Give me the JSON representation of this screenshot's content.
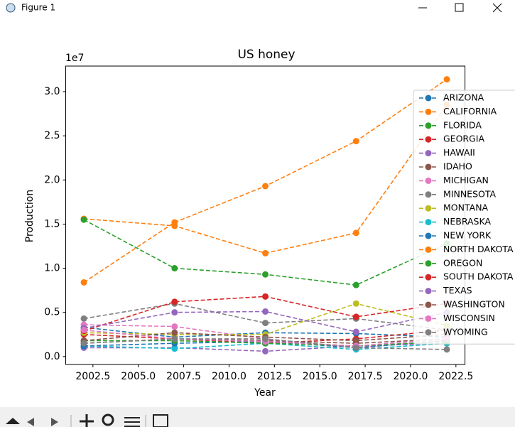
{
  "window_title": "Figure 1",
  "chart_data": {
    "type": "line",
    "title": "US honey",
    "x_label": "Year",
    "y_label": "Production",
    "y_offset_label": "1e7",
    "x": [
      2002,
      2007,
      2012,
      2017,
      2022
    ],
    "xlim": [
      2001,
      2023
    ],
    "xticks": [
      2002.5,
      {
        "value": 2005,
        "label": "2005.0"
      },
      2007.5,
      {
        "value": 2010,
        "label": "2010.0"
      },
      2012.5,
      {
        "value": 2015,
        "label": "2015.0"
      },
      2017.5,
      {
        "value": 2020,
        "label": "2020.0"
      },
      2022.5
    ],
    "ylim": [
      -0.09,
      3.29
    ],
    "yticks": [
      {
        "value": 0,
        "label": "0.0"
      },
      0.5,
      {
        "value": 1,
        "label": "1.0"
      },
      1.5,
      {
        "value": 2,
        "label": "2.0"
      },
      2.5,
      {
        "value": 3,
        "label": "3.0"
      }
    ],
    "line_style": "dashed",
    "marker": "circle",
    "legend": "right",
    "series": [
      {
        "name": "ARIZONA",
        "color": "#1f77b4",
        "values": [
          0.33,
          0.22,
          0.27,
          0.26,
          0.22
        ]
      },
      {
        "name": "CALIFORNIA",
        "color": "#ff7f0e",
        "values": [
          1.56,
          1.48,
          1.17,
          1.4,
          2.85
        ]
      },
      {
        "name": "FLORIDA",
        "color": "#2ca02c",
        "values": [
          1.55,
          1.0,
          0.93,
          0.81,
          1.28
        ]
      },
      {
        "name": "GEORGIA",
        "color": "#d62728",
        "values": [
          0.25,
          0.2,
          0.15,
          0.2,
          0.3
        ]
      },
      {
        "name": "HAWAII",
        "color": "#9467bd",
        "values": [
          0.1,
          0.1,
          0.06,
          0.12,
          0.15
        ]
      },
      {
        "name": "IDAHO",
        "color": "#8c564b",
        "values": [
          0.15,
          0.2,
          0.18,
          0.15,
          0.2
        ]
      },
      {
        "name": "MICHIGAN",
        "color": "#e377c2",
        "values": [
          0.36,
          0.34,
          0.2,
          0.1,
          0.18
        ]
      },
      {
        "name": "MINNESOTA",
        "color": "#7f7f7f",
        "values": [
          0.43,
          0.6,
          0.38,
          0.43,
          0.3
        ]
      },
      {
        "name": "MONTANA",
        "color": "#bcbd22",
        "values": [
          0.27,
          0.25,
          0.25,
          0.6,
          0.35
        ]
      },
      {
        "name": "NEBRASKA",
        "color": "#17becf",
        "values": [
          0.12,
          0.09,
          0.15,
          0.08,
          0.15
        ]
      },
      {
        "name": "NEW YORK",
        "color": "#1f77b4",
        "values": [
          0.12,
          0.15,
          0.17,
          0.1,
          0.18
        ]
      },
      {
        "name": "NORTH DAKOTA",
        "color": "#ff7f0e",
        "values": [
          0.84,
          1.52,
          1.93,
          2.44,
          3.14
        ]
      },
      {
        "name": "OREGON",
        "color": "#2ca02c",
        "values": [
          0.18,
          0.18,
          0.15,
          0.12,
          0.17
        ]
      },
      {
        "name": "SOUTH DAKOTA",
        "color": "#d62728",
        "values": [
          0.29,
          0.62,
          0.68,
          0.45,
          0.6
        ]
      },
      {
        "name": "TEXAS",
        "color": "#9467bd",
        "values": [
          0.32,
          0.5,
          0.51,
          0.28,
          0.5
        ]
      },
      {
        "name": "WASHINGTON",
        "color": "#8c564b",
        "values": [
          0.18,
          0.27,
          0.22,
          0.18,
          0.25
        ]
      },
      {
        "name": "WISCONSIN",
        "color": "#e377c2",
        "values": [
          0.3,
          0.2,
          0.17,
          0.12,
          0.2
        ]
      },
      {
        "name": "WYOMING",
        "color": "#7f7f7f",
        "values": [
          0.15,
          0.2,
          0.2,
          0.1,
          0.08
        ]
      }
    ]
  }
}
